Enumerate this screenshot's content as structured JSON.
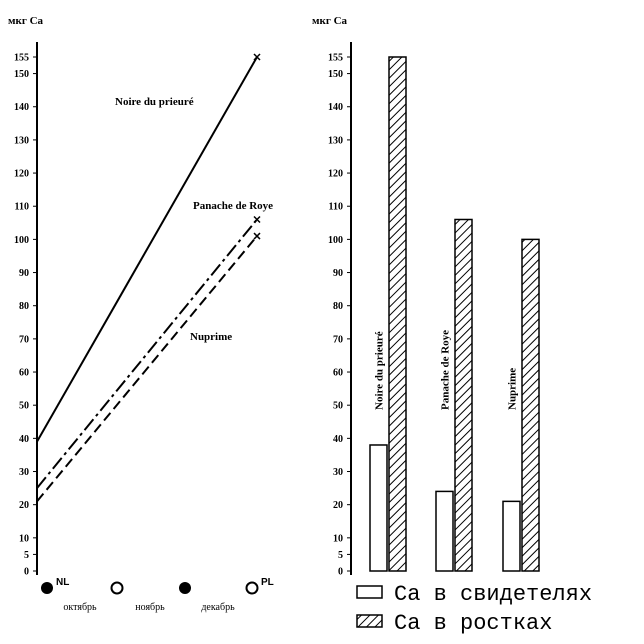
{
  "chart_data": [
    {
      "type": "line",
      "ylabel": "мкг Ca",
      "ylim": [
        0,
        158
      ],
      "yticks": [
        0,
        5,
        10,
        20,
        30,
        40,
        50,
        60,
        70,
        80,
        90,
        100,
        110,
        120,
        130,
        140,
        150,
        155
      ],
      "markers": [
        {
          "symbol": "filled-circle",
          "label": "NL"
        },
        {
          "symbol": "open-circle",
          "label": ""
        },
        {
          "symbol": "filled-circle",
          "label": ""
        },
        {
          "symbol": "open-circle",
          "label": "PL"
        }
      ],
      "months": [
        "октябрь",
        "ноябрь",
        "декабрь"
      ],
      "series": [
        {
          "name": "Noire du prieuré",
          "style": "solid",
          "start": 39,
          "end": 155
        },
        {
          "name": "Panache de Roye",
          "style": "dash-dot",
          "start": 25,
          "end": 106
        },
        {
          "name": "Nuprime",
          "style": "dashed",
          "start": 21,
          "end": 101
        }
      ]
    },
    {
      "type": "bar",
      "ylabel": "мкг Ca",
      "ylim": [
        0,
        158
      ],
      "yticks": [
        0,
        5,
        10,
        20,
        30,
        40,
        50,
        60,
        70,
        80,
        90,
        100,
        110,
        120,
        130,
        140,
        150,
        155
      ],
      "categories": [
        "Noire du prieuré",
        "Panache de Roye",
        "Nuprime"
      ],
      "series": [
        {
          "name": "Ca в свидетелях",
          "pattern": "open",
          "values": [
            38,
            24,
            21
          ]
        },
        {
          "name": "Ca в ростках",
          "pattern": "hatched",
          "values": [
            155,
            106,
            100
          ]
        }
      ],
      "legend": "bottom-right"
    }
  ]
}
